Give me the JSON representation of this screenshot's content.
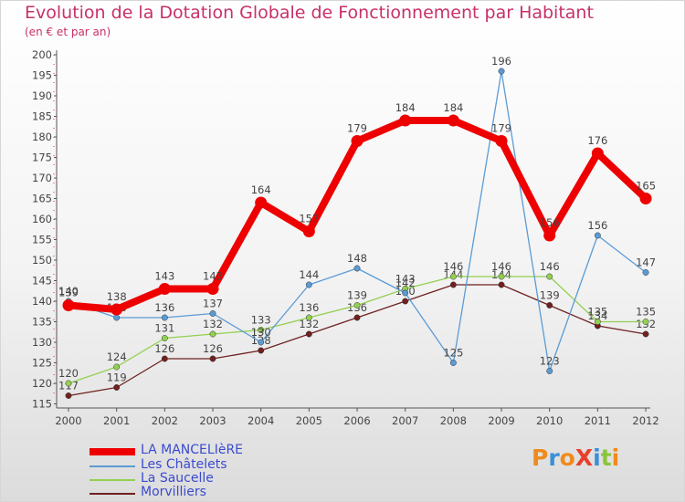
{
  "header": {
    "title": "Evolution de la Dotation Globale de Fonctionnement par Habitant",
    "subtitle": "(en € et par an)"
  },
  "logo": {
    "text": "ProXiti",
    "colors": [
      "#f08a1d",
      "#3a8fd8",
      "#f08a1d",
      "#e8402a",
      "#3a8fd8",
      "#8cc43c",
      "#f08a1d"
    ]
  },
  "chart_data": {
    "type": "line",
    "x": [
      "2000",
      "2001",
      "2002",
      "2003",
      "2004",
      "2005",
      "2006",
      "2007",
      "2008",
      "2009",
      "2010",
      "2011",
      "2012"
    ],
    "ylim": [
      114,
      200
    ],
    "yticks": [
      115,
      120,
      125,
      130,
      135,
      140,
      145,
      150,
      155,
      160,
      165,
      170,
      175,
      180,
      185,
      190,
      195,
      200
    ],
    "grid": false,
    "legend_position": "bottom-left",
    "series": [
      {
        "name": "LA MANCELIèRE",
        "color": "#ee0000",
        "values": [
          139,
          138,
          143,
          143,
          164,
          157,
          179,
          184,
          184,
          179,
          156,
          176,
          165
        ]
      },
      {
        "name": "Les Châtelets",
        "color": "#5b9bd5",
        "values": [
          140,
          136,
          136,
          137,
          130,
          144,
          148,
          142,
          125,
          196,
          123,
          156,
          147
        ]
      },
      {
        "name": "La Saucelle",
        "color": "#92d050",
        "values": [
          120,
          124,
          131,
          132,
          133,
          136,
          139,
          143,
          146,
          146,
          146,
          135,
          135
        ]
      },
      {
        "name": "Morvilliers",
        "color": "#702020",
        "values": [
          117,
          119,
          126,
          126,
          128,
          132,
          136,
          140,
          144,
          144,
          139,
          134,
          132
        ]
      }
    ]
  }
}
